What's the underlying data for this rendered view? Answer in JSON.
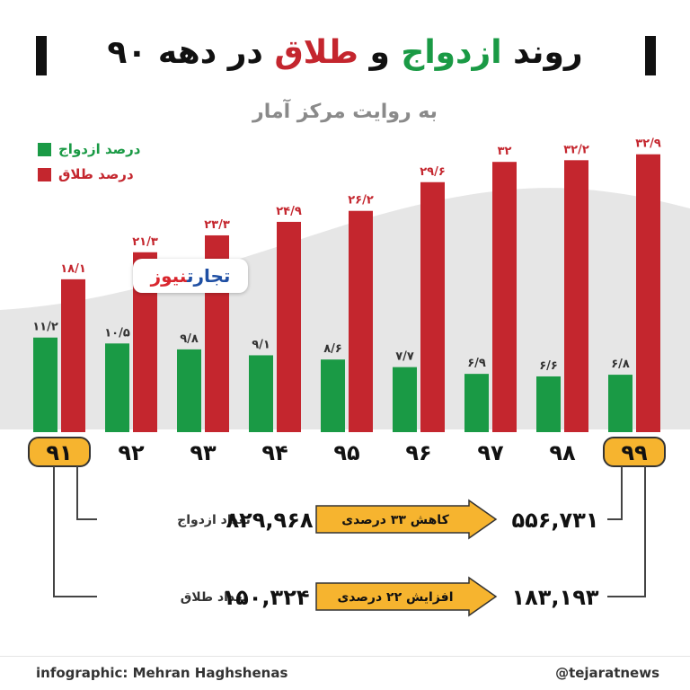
{
  "title": {
    "part1": "روند",
    "part2": "ازدواج",
    "part3": "و",
    "part4": "طلاق",
    "part5": "در دهه ۹۰"
  },
  "subtitle": "به روایت مرکز آمار",
  "legend": {
    "marriage": "درصد ازدواج",
    "divorce": "درصد طلاق"
  },
  "brand": {
    "part1": "تجارت",
    "part2": "نیوز"
  },
  "colors": {
    "marriage": "#1a9a45",
    "divorce": "#c4262e",
    "highlight": "#f6b42f",
    "hill": "#e6e6e6"
  },
  "chart_data": {
    "type": "bar",
    "categories": [
      "۹۱",
      "۹۲",
      "۹۳",
      "۹۴",
      "۹۵",
      "۹۶",
      "۹۷",
      "۹۸",
      "۹۹"
    ],
    "series": [
      {
        "name": "درصد ازدواج",
        "values": [
          11.2,
          10.5,
          9.8,
          9.1,
          8.6,
          7.7,
          6.9,
          6.6,
          6.8
        ],
        "labels": [
          "۱۱/۲",
          "۱۰/۵",
          "۹/۸",
          "۹/۱",
          "۸/۶",
          "۷/۷",
          "۶/۹",
          "۶/۶",
          "۶/۸"
        ]
      },
      {
        "name": "درصد طلاق",
        "values": [
          18.1,
          21.3,
          23.3,
          24.9,
          26.2,
          29.6,
          32,
          32.2,
          32.9
        ],
        "labels": [
          "۱۸/۱",
          "۲۱/۳",
          "۲۳/۳",
          "۲۴/۹",
          "۲۶/۲",
          "۲۹/۶",
          "۳۲",
          "۳۲/۲",
          "۳۲/۹"
        ]
      }
    ],
    "highlighted_categories": [
      "۹۱",
      "۹۹"
    ],
    "ylim": [
      0,
      40
    ]
  },
  "comparison": {
    "marriage": {
      "label": "تعداد ازدواج",
      "start": "۸۲۹,۹۶۸",
      "change": "کاهش ۳۳ درصدی",
      "end": "۵۵۶,۷۳۱"
    },
    "divorce": {
      "label": "تعداد طلاق",
      "start": "۱۵۰,۳۲۴",
      "change": "افزایش ۲۲ درصدی",
      "end": "۱۸۳,۱۹۳"
    }
  },
  "footer": {
    "credit": "infographic: Mehran Haghshenas",
    "handle": "@tejaratnews"
  }
}
